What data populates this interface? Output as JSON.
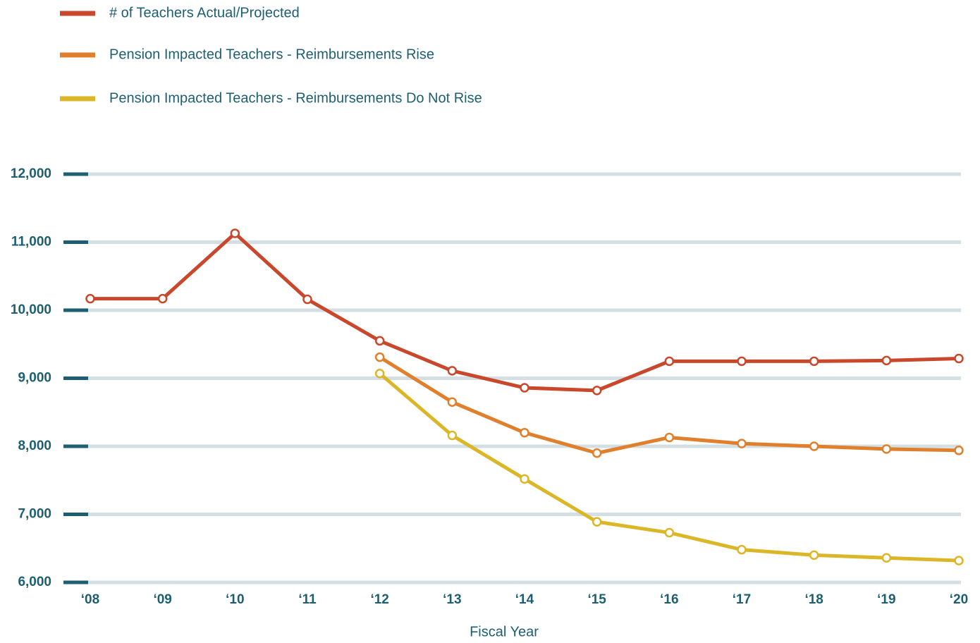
{
  "chart_data": {
    "type": "line",
    "x_label": "Fiscal Year",
    "categories": [
      "‘08",
      "‘09",
      "‘10",
      "‘11",
      "‘12",
      "‘13",
      "‘14",
      "‘15",
      "‘16",
      "‘17",
      "‘18",
      "‘19",
      "‘20"
    ],
    "series": [
      {
        "name": "# of Teachers Actual/Projected",
        "color": "#c9472b",
        "values": [
          10170,
          10170,
          11130,
          10160,
          9550,
          9110,
          8860,
          8820,
          9250,
          9250,
          9250,
          9260,
          9290
        ]
      },
      {
        "name": "Pension Impacted Teachers - Reimbursements Rise",
        "color": "#e07f2c",
        "values": [
          null,
          null,
          null,
          null,
          9310,
          8650,
          8200,
          7900,
          8130,
          8040,
          8000,
          7960,
          7940
        ]
      },
      {
        "name": "Pension Impacted Teachers - Reimbursements Do Not Rise",
        "color": "#dbb626",
        "values": [
          null,
          null,
          null,
          null,
          9070,
          8160,
          7520,
          6890,
          6730,
          6480,
          6400,
          6360,
          6320
        ]
      }
    ],
    "ylim": [
      6000,
      12000
    ],
    "yticks": [
      {
        "value": 6000,
        "label": "6,000"
      },
      {
        "value": 7000,
        "label": "7,000"
      },
      {
        "value": 8000,
        "label": "8,000"
      },
      {
        "value": 9000,
        "label": "9,000"
      },
      {
        "value": 10000,
        "label": "10,000"
      },
      {
        "value": 11000,
        "label": "11,000"
      },
      {
        "value": 12000,
        "label": "12,000"
      }
    ],
    "grid": true,
    "legend": "top-left"
  }
}
